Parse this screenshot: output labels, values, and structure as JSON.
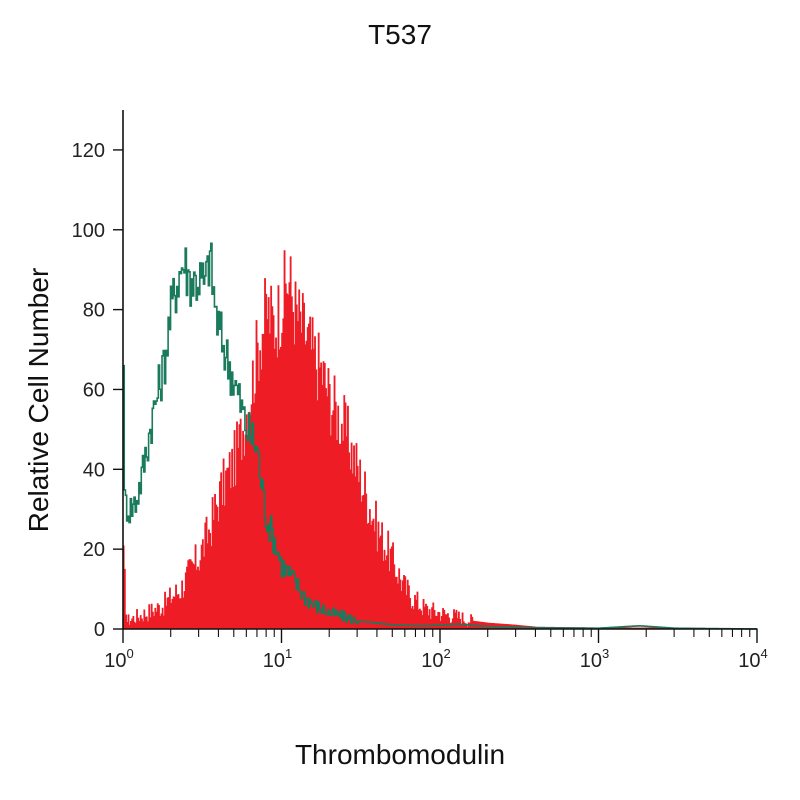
{
  "chart_data": {
    "type": "area",
    "title": "T537",
    "xlabel": "Thrombomodulin",
    "ylabel": "Relative Cell Number",
    "x_scale": "log",
    "xlim": [
      1,
      10000
    ],
    "ylim": [
      0,
      130
    ],
    "x_ticks": [
      {
        "base": "10",
        "exp": "0",
        "value": 1
      },
      {
        "base": "10",
        "exp": "1",
        "value": 10
      },
      {
        "base": "10",
        "exp": "2",
        "value": 100
      },
      {
        "base": "10",
        "exp": "3",
        "value": 1000
      },
      {
        "base": "10",
        "exp": "4",
        "value": 10000
      }
    ],
    "y_ticks": [
      "0",
      "20",
      "40",
      "60",
      "80",
      "100",
      "120"
    ],
    "grid": false,
    "legend": "none",
    "series": [
      {
        "style": "filled",
        "color": "#ee1c25",
        "points": [
          [
            1,
            17
          ],
          [
            1.05,
            2
          ],
          [
            1.2,
            3
          ],
          [
            1.4,
            4
          ],
          [
            1.6,
            5
          ],
          [
            1.8,
            6
          ],
          [
            2,
            8
          ],
          [
            2.3,
            10
          ],
          [
            2.6,
            14
          ],
          [
            3,
            18
          ],
          [
            3.5,
            25
          ],
          [
            4,
            33
          ],
          [
            4.5,
            38
          ],
          [
            5,
            42
          ],
          [
            5.5,
            48
          ],
          [
            6,
            55
          ],
          [
            6.5,
            62
          ],
          [
            7,
            70
          ],
          [
            7.5,
            75
          ],
          [
            8,
            80
          ],
          [
            9,
            76
          ],
          [
            10,
            82
          ],
          [
            11,
            88
          ],
          [
            12,
            80
          ],
          [
            14,
            74
          ],
          [
            16,
            68
          ],
          [
            18,
            64
          ],
          [
            20,
            58
          ],
          [
            25,
            50
          ],
          [
            30,
            40
          ],
          [
            35,
            32
          ],
          [
            40,
            25
          ],
          [
            50,
            17
          ],
          [
            60,
            10
          ],
          [
            70,
            7
          ],
          [
            80,
            5
          ],
          [
            100,
            4
          ],
          [
            130,
            3
          ],
          [
            160,
            2
          ],
          [
            200,
            1.5
          ],
          [
            300,
            1
          ],
          [
            400,
            0.5
          ],
          [
            1000,
            0.3
          ],
          [
            3000,
            0.3
          ],
          [
            10000,
            0
          ]
        ]
      },
      {
        "style": "outline",
        "color": "#1a7a5c",
        "points": [
          [
            1,
            71
          ],
          [
            1.01,
            32
          ],
          [
            1.1,
            30
          ],
          [
            1.2,
            32
          ],
          [
            1.3,
            38
          ],
          [
            1.4,
            45
          ],
          [
            1.5,
            52
          ],
          [
            1.6,
            57
          ],
          [
            1.8,
            66
          ],
          [
            2,
            80
          ],
          [
            2.2,
            88
          ],
          [
            2.4,
            92
          ],
          [
            2.6,
            88
          ],
          [
            2.8,
            87
          ],
          [
            3,
            88
          ],
          [
            3.3,
            86
          ],
          [
            3.5,
            94
          ],
          [
            3.8,
            80
          ],
          [
            4,
            75
          ],
          [
            4.5,
            68
          ],
          [
            5,
            62
          ],
          [
            5.5,
            56
          ],
          [
            6,
            50
          ],
          [
            6.5,
            48
          ],
          [
            7,
            45
          ],
          [
            7.5,
            35
          ],
          [
            8,
            28
          ],
          [
            9,
            22
          ],
          [
            10,
            16
          ],
          [
            12,
            12
          ],
          [
            14,
            8
          ],
          [
            16,
            6
          ],
          [
            20,
            4
          ],
          [
            25,
            3
          ],
          [
            30,
            2
          ],
          [
            40,
            1.5
          ],
          [
            50,
            1
          ],
          [
            80,
            0.8
          ],
          [
            130,
            1.2
          ],
          [
            200,
            0.6
          ],
          [
            400,
            0.3
          ],
          [
            1000,
            0.2
          ],
          [
            1800,
            0.8
          ],
          [
            3000,
            0.2
          ],
          [
            10000,
            0
          ]
        ]
      }
    ]
  }
}
